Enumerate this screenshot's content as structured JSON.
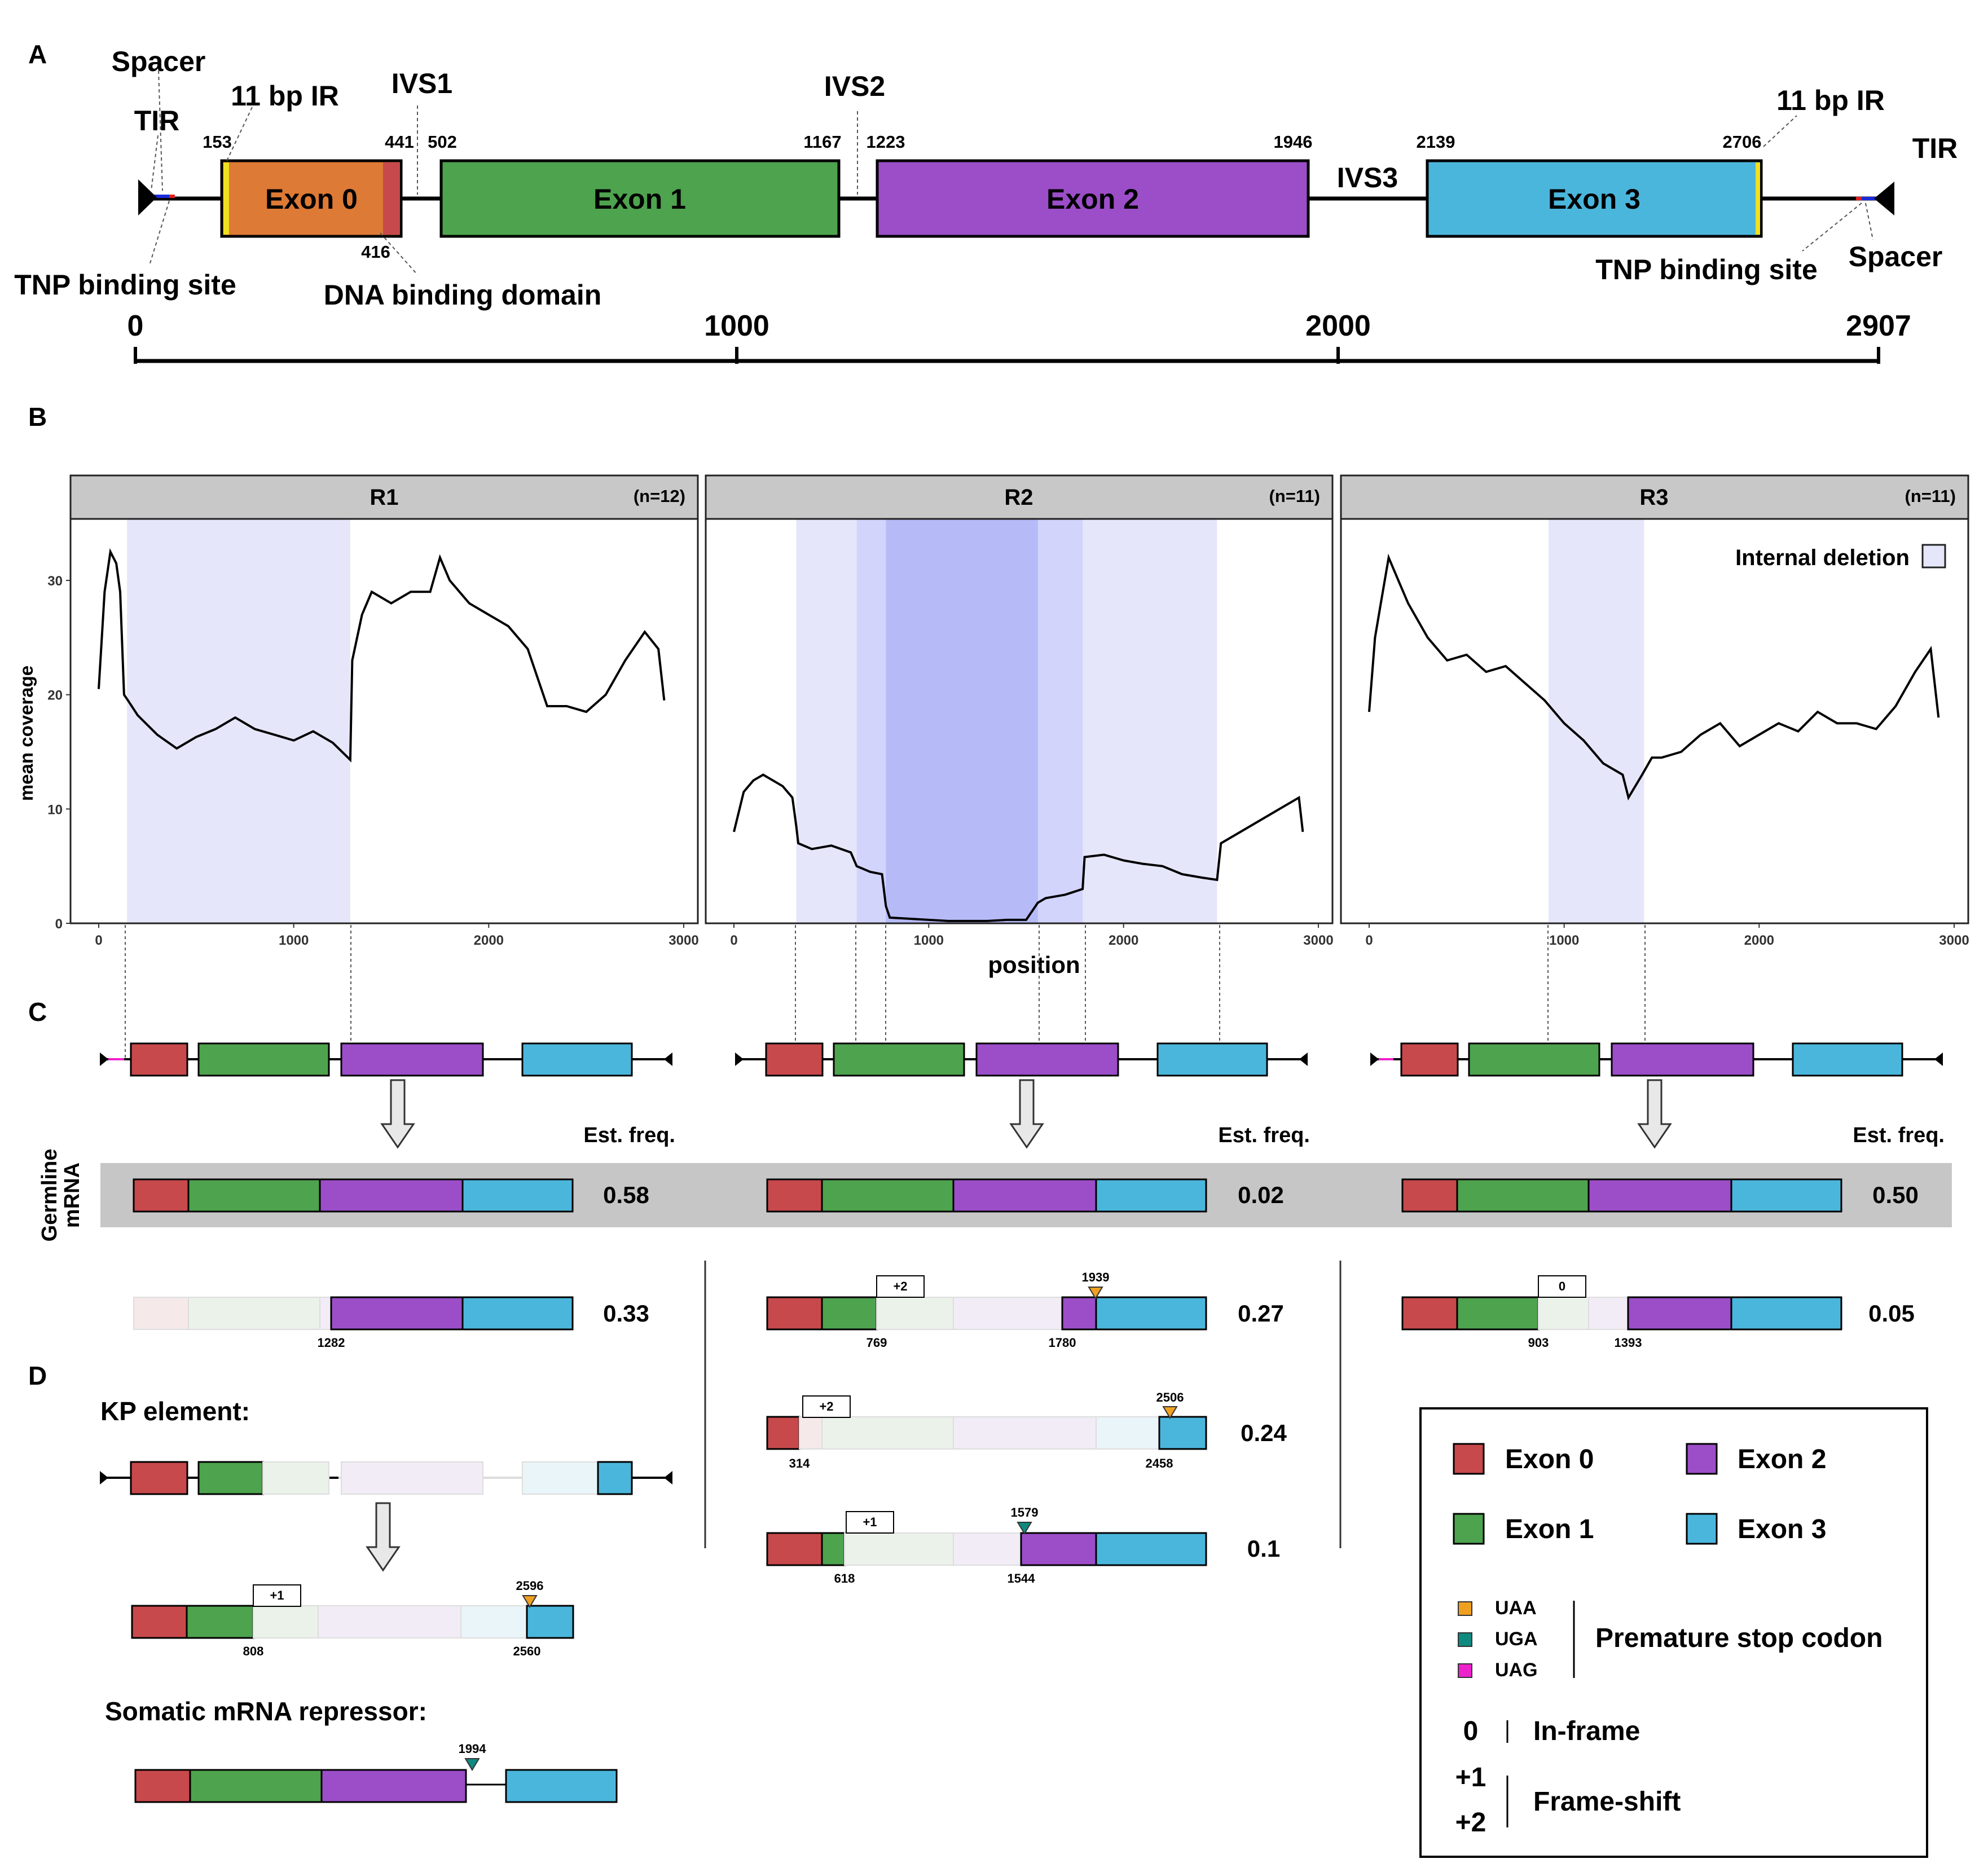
{
  "panels": {
    "A": "A",
    "B": "B",
    "C": "C",
    "D": "D"
  },
  "colors": {
    "exon0": "#c8494b",
    "exon0_orange": "#dd7a35",
    "exon1": "#4ea34e",
    "exon2": "#9b4ec8",
    "exon3": "#4bb6dc",
    "uaa": "#f0a020",
    "uga": "#0f8a80",
    "uag": "#ee22cc",
    "deletion": "#e6e6fa",
    "deletion_dark": "#b6bbf8",
    "germline_band": "#c6c6c6"
  },
  "panel_a": {
    "labels": {
      "tir_left": "TIR",
      "spacer_left": "Spacer",
      "ir_left": "11 bp IR",
      "ivs1": "IVS1",
      "ivs2": "IVS2",
      "ivs3": "IVS3",
      "ir_right": "11 bp IR",
      "tir_right": "TIR",
      "tnp_left": "TNP binding site",
      "dna_binding": "DNA binding domain",
      "tnp_right": "TNP binding site",
      "spacer_right": "Spacer"
    },
    "exon_labels": {
      "exon0": "Exon 0",
      "exon1": "Exon 1",
      "exon2": "Exon 2",
      "exon3": "Exon 3"
    },
    "coords": {
      "c153": "153",
      "c441": "441",
      "c416": "416",
      "c502": "502",
      "c1167": "1167",
      "c1223": "1223",
      "c1946": "1946",
      "c2139": "2139",
      "c2706": "2706"
    },
    "scale": {
      "s0": "0",
      "s1000": "1000",
      "s2000": "2000",
      "s2907": "2907"
    }
  },
  "panel_b": {
    "ylabel": "mean coverage",
    "xlabel": "position",
    "yticks": [
      "0",
      "10",
      "20",
      "30"
    ],
    "xticks": [
      "0",
      "1000",
      "2000",
      "3000"
    ],
    "facets": [
      {
        "name": "R1",
        "n": "(n=12)"
      },
      {
        "name": "R2",
        "n": "(n=11)"
      },
      {
        "name": "R3",
        "n": "(n=11)"
      }
    ],
    "legend": "Internal deletion"
  },
  "chart_data": {
    "type": "line",
    "xlim": [
      0,
      3000
    ],
    "ylim": [
      0,
      34
    ],
    "series": [
      {
        "name": "R1",
        "deletions": [
          [
            145,
            1290
          ]
        ],
        "x": [
          0,
          30,
          60,
          90,
          110,
          130,
          150,
          200,
          300,
          400,
          500,
          600,
          700,
          800,
          900,
          1000,
          1100,
          1200,
          1290,
          1300,
          1350,
          1400,
          1500,
          1600,
          1700,
          1750,
          1800,
          1900,
          2000,
          2100,
          2200,
          2300,
          2400,
          2500,
          2600,
          2700,
          2800,
          2870,
          2900
        ],
        "y": [
          20.5,
          29,
          32.5,
          31.5,
          29,
          20,
          19.5,
          18.2,
          16.5,
          15.3,
          16.3,
          17,
          18,
          17,
          16.5,
          16,
          16.8,
          15.8,
          14.3,
          23,
          27,
          29,
          28,
          29,
          29,
          32,
          30,
          28,
          27,
          26,
          24,
          19,
          19,
          18.5,
          20,
          23,
          25.5,
          24,
          19.5
        ]
      },
      {
        "name": "R2",
        "deletions": [
          [
            320,
            2480
          ],
          [
            630,
            1790
          ],
          [
            780,
            1560
          ]
        ],
        "x": [
          0,
          50,
          100,
          150,
          200,
          250,
          300,
          320,
          330,
          400,
          500,
          600,
          630,
          700,
          760,
          780,
          800,
          900,
          1000,
          1100,
          1200,
          1300,
          1400,
          1500,
          1560,
          1600,
          1700,
          1790,
          1800,
          1900,
          2000,
          2100,
          2200,
          2300,
          2400,
          2480,
          2500,
          2600,
          2700,
          2800,
          2900,
          2920
        ],
        "y": [
          8,
          11.5,
          12.5,
          13,
          12.5,
          12,
          11,
          8.5,
          7,
          6.5,
          6.8,
          6.2,
          5,
          4.5,
          4.3,
          1.5,
          0.5,
          0.4,
          0.3,
          0.2,
          0.2,
          0.2,
          0.3,
          0.3,
          1.8,
          2.2,
          2.5,
          3,
          5.8,
          6,
          5.5,
          5.2,
          5,
          4.3,
          4,
          3.8,
          7,
          8,
          9,
          10,
          11,
          8
        ]
      },
      {
        "name": "R3",
        "deletions": [
          [
            920,
            1410
          ]
        ],
        "x": [
          0,
          30,
          60,
          100,
          150,
          200,
          300,
          400,
          500,
          600,
          700,
          800,
          900,
          1000,
          1100,
          1200,
          1300,
          1330,
          1400,
          1450,
          1500,
          1600,
          1700,
          1800,
          1900,
          2000,
          2100,
          2200,
          2300,
          2400,
          2500,
          2600,
          2700,
          2800,
          2880,
          2920
        ],
        "y": [
          18.5,
          25,
          28,
          32,
          30,
          28,
          25,
          23,
          23.5,
          22,
          22.5,
          21,
          19.5,
          17.5,
          16,
          14,
          13,
          11,
          13,
          14.5,
          14.5,
          15,
          16.5,
          17.5,
          15.5,
          16.5,
          17.5,
          16.8,
          18.5,
          17.5,
          17.5,
          17,
          19,
          22,
          24,
          18
        ]
      }
    ]
  },
  "panel_c": {
    "germline_label": "Germline mRNA",
    "est_freq": "Est. freq.",
    "germline_freqs": [
      "0.58",
      "0.02",
      "0.50"
    ],
    "r1_alt": {
      "freq": "0.33",
      "pos1": "1282"
    },
    "r2_alt1": {
      "freq": "0.27",
      "frame": "+2",
      "stop": "1939",
      "pos1": "769",
      "pos2": "1780"
    },
    "r2_alt2": {
      "freq": "0.24",
      "frame": "+2",
      "stop": "2506",
      "pos1": "314",
      "pos2": "2458"
    },
    "r2_alt3": {
      "freq": "0.1",
      "frame": "+1",
      "stop": "1579",
      "pos1": "618",
      "pos2": "1544"
    },
    "r3_alt": {
      "freq": "0.05",
      "frame": "0",
      "pos1": "903",
      "pos2": "1393"
    }
  },
  "panel_d": {
    "kp_title": "KP element:",
    "kp_mrna": {
      "frame": "+1",
      "stop": "2596",
      "pos1": "808",
      "pos2": "2560"
    },
    "repressor_title": "Somatic mRNA repressor:",
    "repressor_stop": "1994"
  },
  "legend": {
    "exon0": "Exon 0",
    "exon1": "Exon 1",
    "exon2": "Exon 2",
    "exon3": "Exon 3",
    "uaa": "UAA",
    "uga": "UGA",
    "uag": "UAG",
    "premature": "Premature stop codon",
    "inframe_sym": "0",
    "inframe": "In-frame",
    "fs_plus1": "+1",
    "fs_plus2": "+2",
    "frameshift": "Frame-shift"
  }
}
